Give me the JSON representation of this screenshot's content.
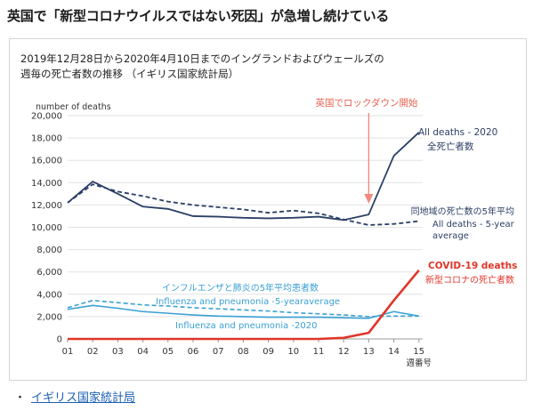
{
  "headline": "英国で「新型コロナウイルスではない死因」が急増し続けている",
  "chart_data": {
    "type": "line",
    "title": "2019年12月28日から2020年4月10日までのイングランドおよびウェールズの",
    "subtitle": "週毎の死亡者数の推移 （イギリス国家統計局）",
    "ylabel": "number of deaths",
    "xlabel": "週番号",
    "ylim": [
      0,
      20000
    ],
    "yticks": [
      "0",
      "2,000",
      "4,000",
      "6,000",
      "8,000",
      "10,000",
      "12,000",
      "14,000",
      "16,000",
      "18,000",
      "20,000"
    ],
    "categories": [
      "01",
      "02",
      "03",
      "04",
      "05",
      "06",
      "07",
      "08",
      "09",
      "10",
      "11",
      "12",
      "13",
      "14",
      "15"
    ],
    "grid": true,
    "series": [
      {
        "key": "all2020",
        "name": "All deaths - 2020",
        "name_ja": "全死亡者数",
        "color": "#2b3f66",
        "dashed": false,
        "values": [
          12200,
          14100,
          13000,
          11850,
          11650,
          11000,
          10950,
          10850,
          10800,
          10850,
          10950,
          10650,
          11150,
          16400,
          18500
        ]
      },
      {
        "key": "all5yr",
        "name": "All deaths - 5-year average",
        "name_ja": "同地域の死亡数の5年平均",
        "color": "#2b3f66",
        "dashed": true,
        "values": [
          12200,
          13850,
          13200,
          12800,
          12300,
          12000,
          11800,
          11600,
          11300,
          11500,
          11250,
          10700,
          10200,
          10300,
          10550
        ]
      },
      {
        "key": "flu5yr",
        "name": "Influenza and pneumonia -5-yearaverage",
        "name_ja": "インフルエンザと肺炎の5年平均患者数",
        "color": "#3aa0d3",
        "dashed": true,
        "values": [
          2800,
          3450,
          3250,
          3050,
          2950,
          2800,
          2700,
          2600,
          2500,
          2350,
          2250,
          2150,
          2000,
          2050,
          2050
        ]
      },
      {
        "key": "flu2020",
        "name": "Influenza and pneumonia -2020",
        "color": "#3aa0d3",
        "dashed": false,
        "values": [
          2650,
          3000,
          2750,
          2450,
          2300,
          2150,
          2050,
          2000,
          1950,
          1950,
          1950,
          1900,
          1850,
          2450,
          2050
        ]
      },
      {
        "key": "covid",
        "name": "COVID-19 deaths",
        "name_ja": "新型コロナの死亡者数",
        "color": "#e03528",
        "dashed": false,
        "values": [
          0,
          0,
          0,
          0,
          0,
          0,
          0,
          0,
          0,
          0,
          0,
          100,
          550,
          3450,
          6150
        ]
      }
    ],
    "annotations": [
      {
        "text": "英国でロックダウン開始",
        "color": "#e8604f",
        "arrow_week": 13
      }
    ]
  },
  "source": {
    "bullet": "・",
    "label": "イギリス国家統計局"
  }
}
